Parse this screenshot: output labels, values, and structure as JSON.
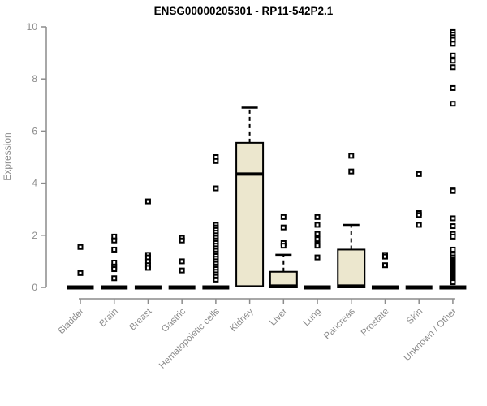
{
  "title": "ENSG00000205301 - RP11-542P2.1",
  "colors": {
    "background": "#ffffff",
    "title": "#000000",
    "axis": "#8c8c8c",
    "tick_label": "#8c8c8c",
    "box_fill": "#ece7ce",
    "box_border": "#000000",
    "median": "#000000",
    "outlier": "#000000"
  },
  "chart_data": {
    "type": "boxplot",
    "title": "ENSG00000205301 - RP11-542P2.1",
    "xlabel": "",
    "ylabel": "Expression",
    "ylim": [
      0,
      10
    ],
    "yticks": [
      0,
      2,
      4,
      6,
      8,
      10
    ],
    "grid": false,
    "legend": "none",
    "categories": [
      "Bladder",
      "Brain",
      "Breast",
      "Gastric",
      "Hematopoietic cells",
      "Kidney",
      "Liver",
      "Lung",
      "Pancreas",
      "Prostate",
      "Skin",
      "Unknown / Other"
    ],
    "series": [
      {
        "label": "Bladder",
        "box": {
          "q1": 0,
          "median": 0,
          "q3": 0
        },
        "outliers": [
          1.55,
          0.55
        ]
      },
      {
        "label": "Brain",
        "box": {
          "q1": 0,
          "median": 0,
          "q3": 0
        },
        "outliers": [
          1.95,
          1.8,
          1.45,
          0.95,
          0.8,
          0.7,
          0.35
        ]
      },
      {
        "label": "Breast",
        "box": {
          "q1": 0,
          "median": 0,
          "q3": 0
        },
        "outliers": [
          3.3,
          1.25,
          1.15,
          1.0,
          0.85,
          0.75
        ]
      },
      {
        "label": "Gastric",
        "box": {
          "q1": 0,
          "median": 0,
          "q3": 0
        },
        "outliers": [
          1.9,
          1.8,
          1.0,
          0.65
        ]
      },
      {
        "label": "Hematopoietic cells",
        "box": {
          "q1": 0,
          "median": 0,
          "q3": 0
        },
        "outliers": [
          5.0,
          4.85,
          3.8,
          2.4,
          2.3,
          2.2,
          2.1,
          2.0,
          1.9,
          1.8,
          1.7,
          1.6,
          1.5,
          1.4,
          1.3,
          1.2,
          1.1,
          1.0,
          0.9,
          0.8,
          0.7,
          0.6,
          0.5,
          0.4,
          0.3
        ]
      },
      {
        "label": "Kidney",
        "box": {
          "q1": 0.05,
          "median": 4.35,
          "q3": 5.55,
          "whisker_high": 6.9
        },
        "outliers": []
      },
      {
        "label": "Liver",
        "box": {
          "q1": 0,
          "median": 0.05,
          "q3": 0.6,
          "whisker_high": 1.25
        },
        "outliers": [
          2.7,
          2.3,
          1.7,
          1.6
        ]
      },
      {
        "label": "Lung",
        "box": {
          "q1": 0,
          "median": 0,
          "q3": 0
        },
        "outliers": [
          2.7,
          2.4,
          2.05,
          1.85,
          1.65,
          1.6,
          1.15
        ]
      },
      {
        "label": "Pancreas",
        "box": {
          "q1": 0,
          "median": 0.05,
          "q3": 1.45,
          "whisker_high": 2.4
        },
        "outliers": [
          5.05,
          4.45
        ]
      },
      {
        "label": "Prostate",
        "box": {
          "q1": 0,
          "median": 0,
          "q3": 0
        },
        "outliers": [
          1.25,
          1.18,
          0.85
        ]
      },
      {
        "label": "Skin",
        "box": {
          "q1": 0,
          "median": 0,
          "q3": 0
        },
        "outliers": [
          4.35,
          2.85,
          2.78,
          2.4
        ]
      },
      {
        "label": "Unknown / Other",
        "box": {
          "q1": 0,
          "median": 0,
          "q3": 0
        },
        "outliers": [
          9.8,
          9.7,
          9.6,
          9.5,
          9.35,
          8.9,
          8.7,
          8.45,
          7.65,
          7.05,
          3.75,
          3.7,
          2.65,
          2.35,
          2.05,
          1.95,
          1.45,
          1.25,
          1.15,
          1.05,
          1.0,
          0.95,
          0.9,
          0.85,
          0.8,
          0.75,
          0.7,
          0.65,
          0.6,
          0.55,
          0.5,
          0.45,
          0.4,
          0.35,
          0.3,
          0.25,
          0.2
        ]
      }
    ]
  }
}
